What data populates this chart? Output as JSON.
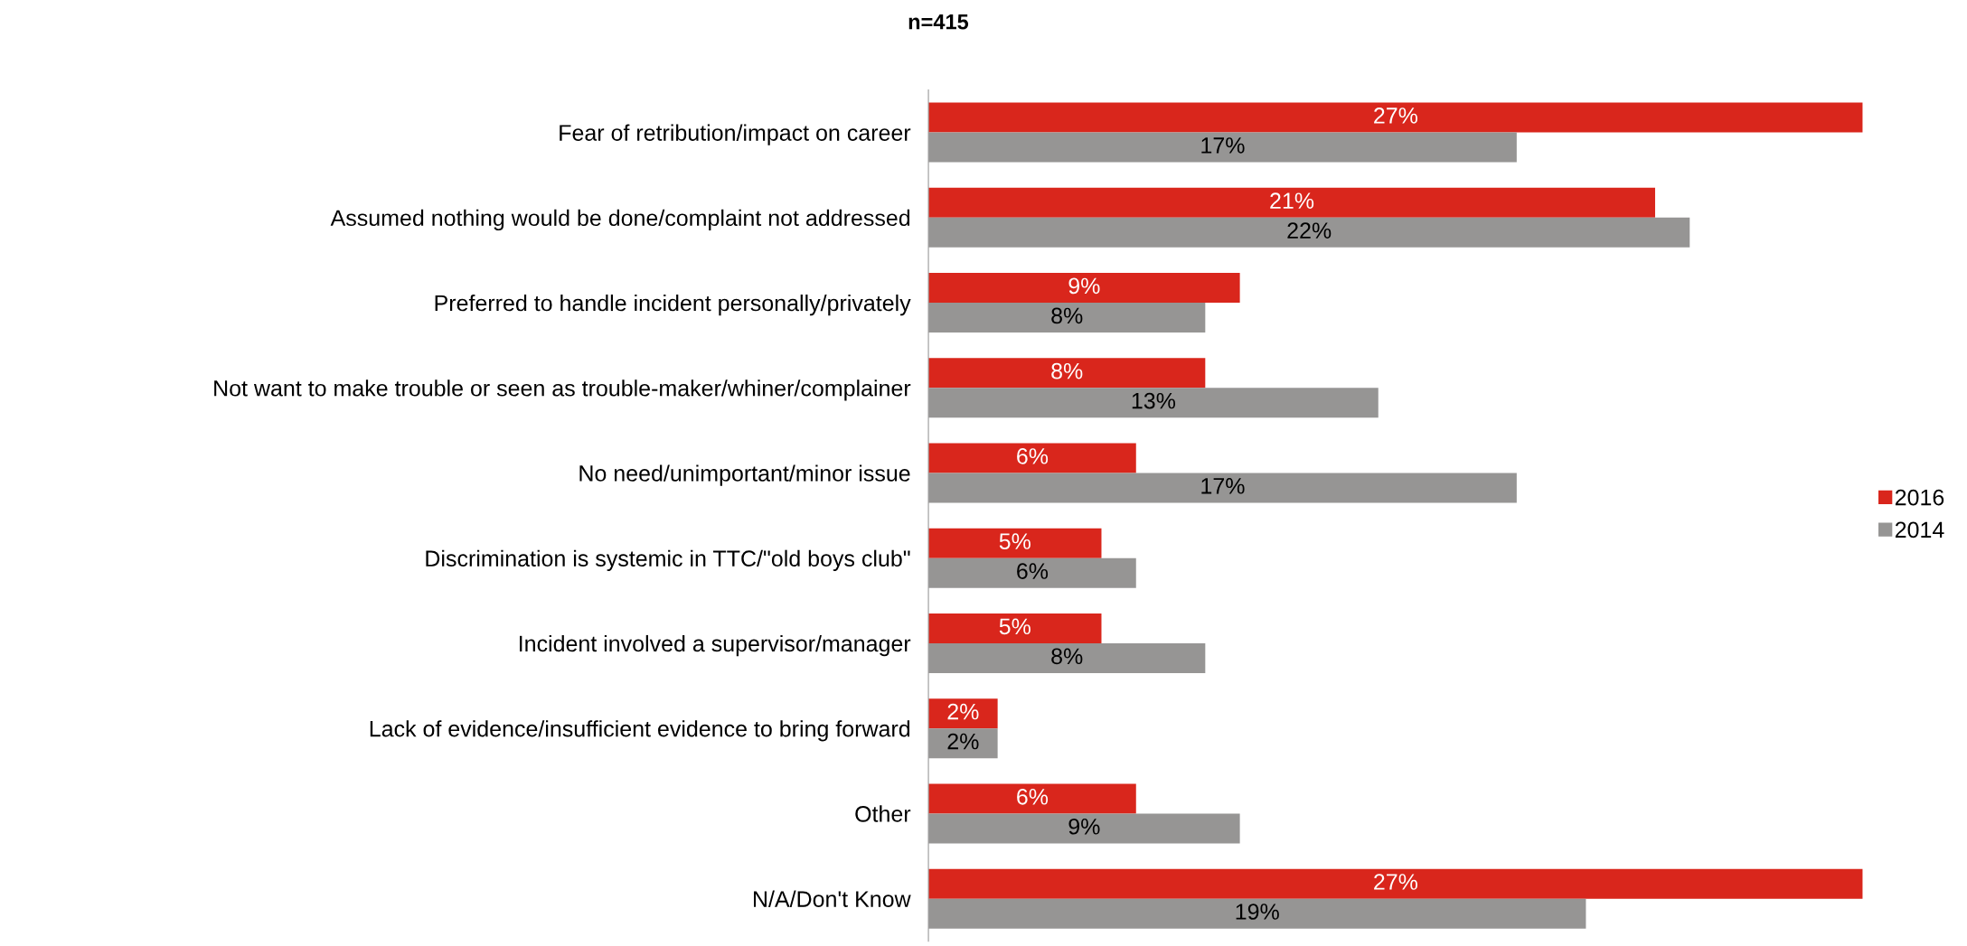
{
  "chart_data": {
    "type": "bar",
    "orientation": "horizontal",
    "title": "n=415",
    "categories": [
      "Fear of retribution/impact on career",
      "Assumed nothing would be done/complaint not addressed",
      "Preferred to handle incident personally/privately",
      "Not want to make trouble or seen as trouble-maker/whiner/complainer",
      "No need/unimportant/minor issue",
      "Discrimination is systemic in TTC/\"old boys club\"",
      "Incident involved a supervisor/manager",
      "Lack of evidence/insufficient evidence to bring forward",
      "Other",
      "N/A/Don't Know"
    ],
    "series": [
      {
        "name": "2016",
        "color": "#d9261c",
        "values": [
          27,
          21,
          9,
          8,
          6,
          5,
          5,
          2,
          6,
          27
        ],
        "value_labels": [
          "27%",
          "21%",
          "9%",
          "8%",
          "6%",
          "5%",
          "5%",
          "2%",
          "6%",
          "27%"
        ]
      },
      {
        "name": "2014",
        "color": "#969594",
        "values": [
          17,
          22,
          8,
          13,
          17,
          6,
          8,
          2,
          9,
          19
        ],
        "value_labels": [
          "17%",
          "22%",
          "8%",
          "13%",
          "17%",
          "6%",
          "8%",
          "2%",
          "9%",
          "19%"
        ]
      }
    ],
    "legend": "right",
    "grid": false
  }
}
